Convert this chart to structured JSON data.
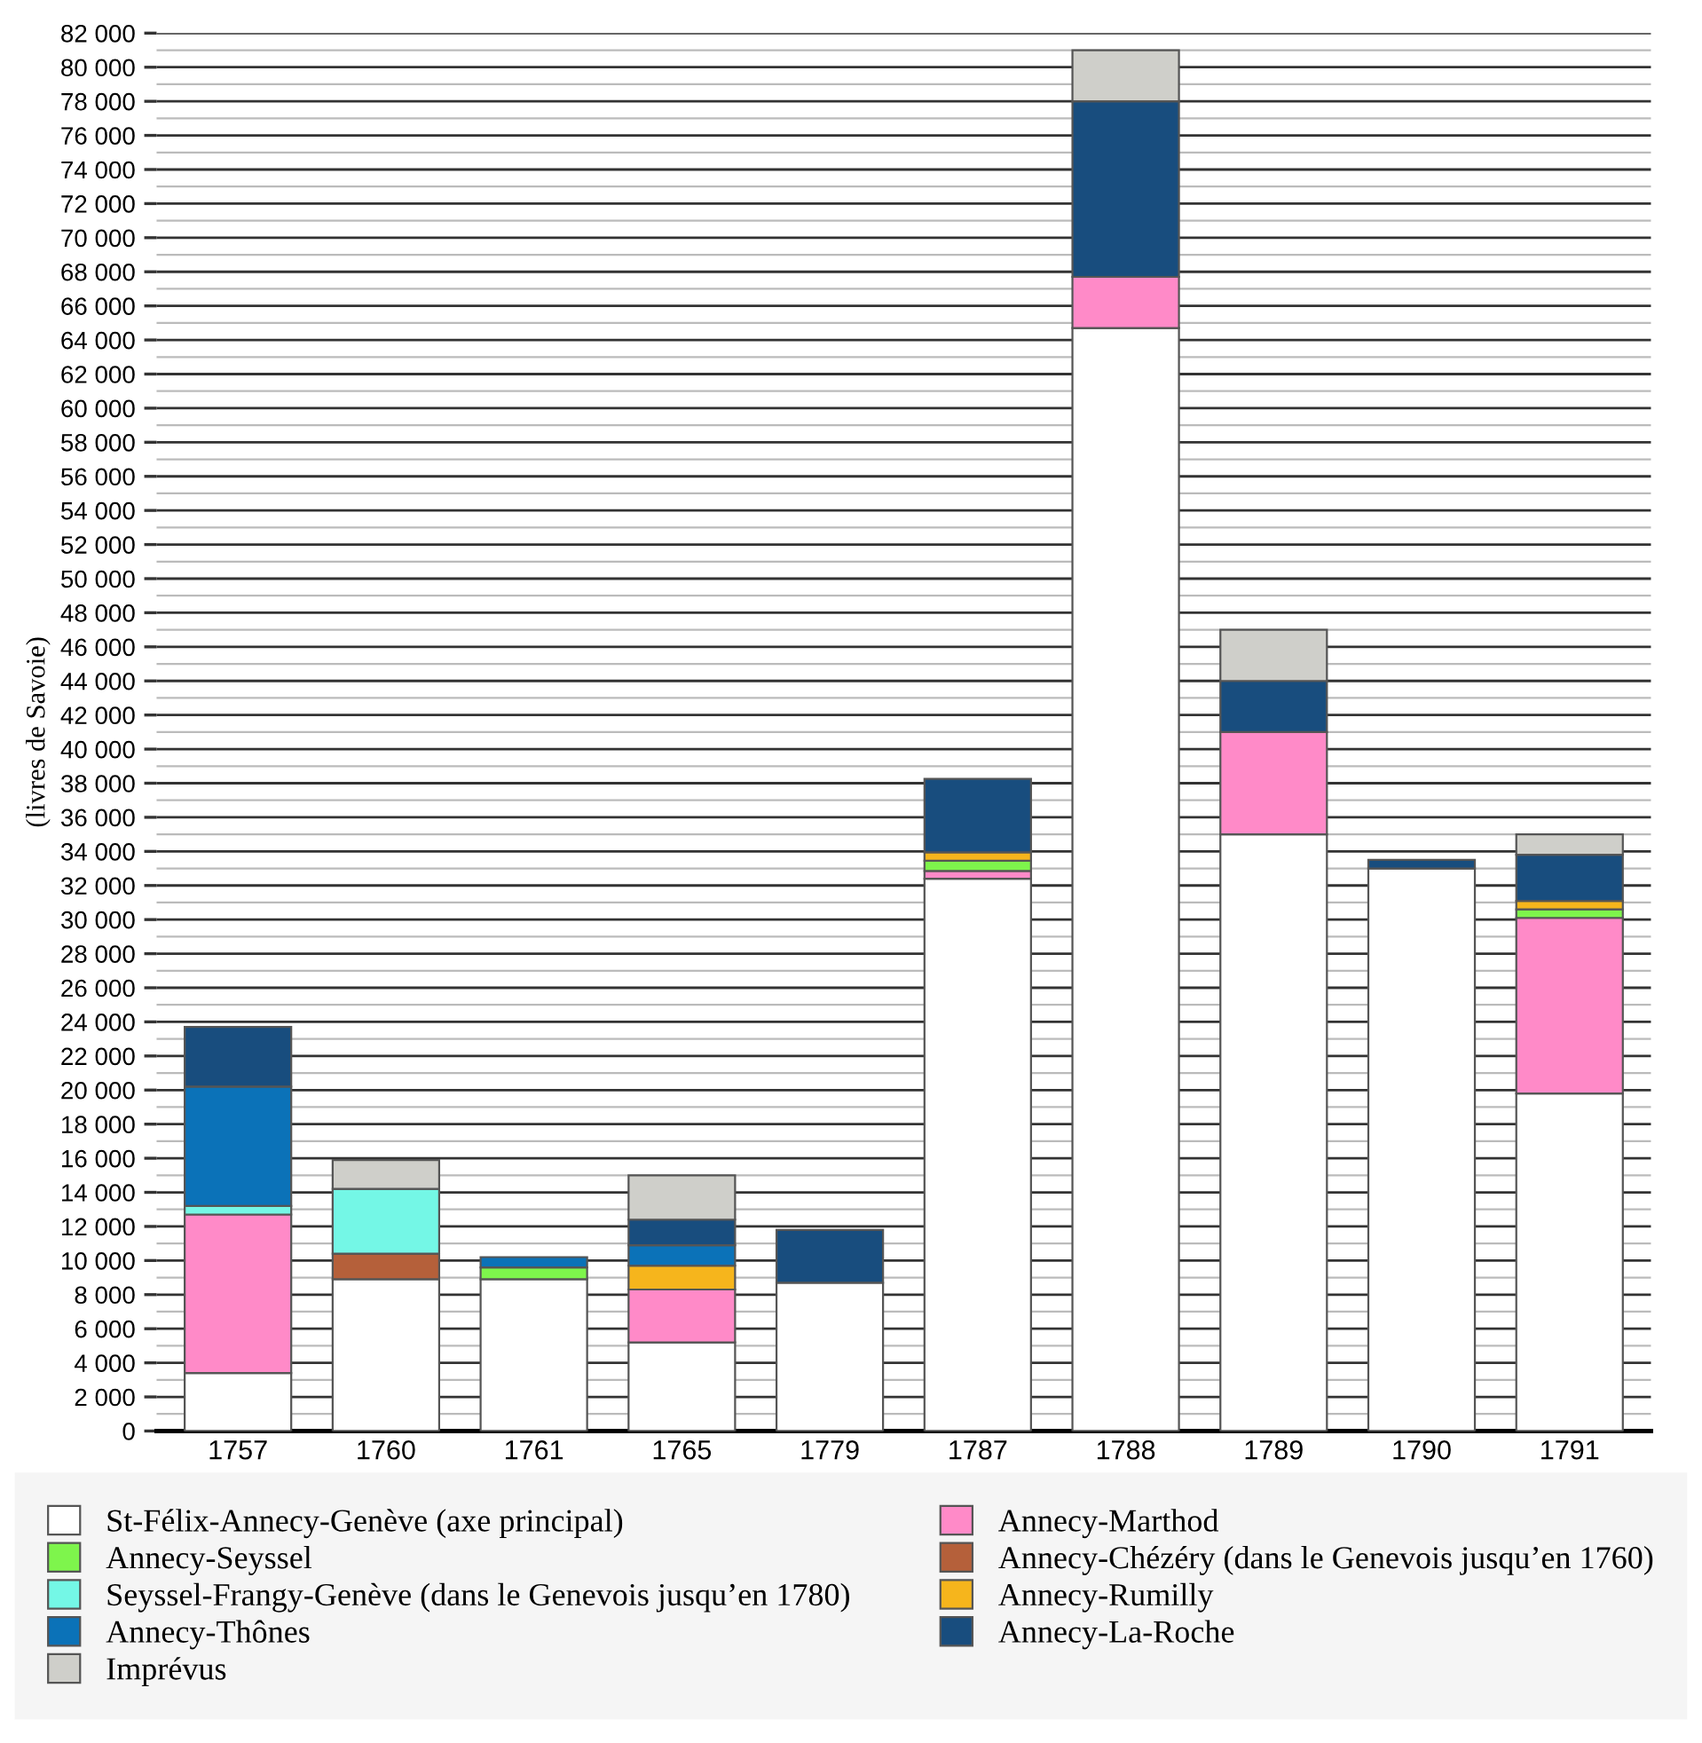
{
  "chart_data": {
    "type": "bar",
    "stacked": true,
    "ylabel": "(livres de Savoie)",
    "legend": "bottom",
    "grid": "y",
    "categories": [
      "1757",
      "1760",
      "1761",
      "1765",
      "1779",
      "1787",
      "1788",
      "1789",
      "1790",
      "1791"
    ],
    "series": [
      {
        "name": "St-Félix-Annecy-Genève (axe principal)",
        "color": "#ffffff",
        "values": [
          3400,
          8900,
          8900,
          5200,
          8700,
          32400,
          64700,
          35000,
          33000,
          19800
        ]
      },
      {
        "name": "Annecy-Marthod",
        "color": "#ff8ac8",
        "values": [
          9300,
          null,
          null,
          3100,
          null,
          450,
          3000,
          6000,
          null,
          10300
        ]
      },
      {
        "name": "Annecy-Chézéry (dans le Genevois jusqu’en 1760)",
        "color": "#b5603a",
        "values": [
          null,
          1500,
          null,
          null,
          null,
          null,
          null,
          null,
          null,
          null
        ]
      },
      {
        "name": "Seyssel-Frangy-Genève (dans le Genevois jusqu’en 1780)",
        "color": "#74f7e6",
        "values": [
          500,
          3800,
          null,
          null,
          null,
          null,
          null,
          null,
          null,
          null
        ]
      },
      {
        "name": "Annecy-Seyssel",
        "color": "#7ef54c",
        "values": [
          null,
          null,
          700,
          null,
          null,
          600,
          null,
          null,
          null,
          500
        ]
      },
      {
        "name": "Annecy-Rumilly",
        "color": "#f6b51c",
        "values": [
          null,
          null,
          null,
          1400,
          null,
          500,
          null,
          null,
          null,
          500
        ]
      },
      {
        "name": "Annecy-Thônes",
        "color": "#0b72b8",
        "values": [
          7000,
          null,
          600,
          1200,
          null,
          null,
          null,
          null,
          null,
          null
        ]
      },
      {
        "name": "Annecy-La-Roche",
        "color": "#184d7e",
        "values": [
          3500,
          null,
          null,
          1500,
          3100,
          4300,
          10300,
          3000,
          500,
          2700
        ]
      },
      {
        "name": "Imprévus",
        "color": "#cfcfca",
        "values": [
          null,
          1700,
          null,
          2600,
          null,
          null,
          3000,
          3000,
          null,
          1200
        ]
      }
    ],
    "ylim": [
      0,
      82000
    ],
    "yticks": [
      {
        "value": 0,
        "label": "0"
      },
      {
        "value": 1000,
        "label": null
      },
      {
        "value": 2000,
        "label": "2 000"
      },
      {
        "value": 3000,
        "label": null
      },
      {
        "value": 4000,
        "label": "4 000"
      },
      {
        "value": 5000,
        "label": null
      },
      {
        "value": 6000,
        "label": "6 000"
      },
      {
        "value": 7000,
        "label": null
      },
      {
        "value": 8000,
        "label": "8 000"
      },
      {
        "value": 9000,
        "label": null
      },
      {
        "value": 10000,
        "label": "10 000"
      },
      {
        "value": 11000,
        "label": null
      },
      {
        "value": 12000,
        "label": "12 000"
      },
      {
        "value": 13000,
        "label": null
      },
      {
        "value": 14000,
        "label": "14 000"
      },
      {
        "value": 15000,
        "label": null
      },
      {
        "value": 16000,
        "label": "16 000"
      },
      {
        "value": 17000,
        "label": null
      },
      {
        "value": 18000,
        "label": "18 000"
      },
      {
        "value": 19000,
        "label": null
      },
      {
        "value": 20000,
        "label": "20 000"
      },
      {
        "value": 21000,
        "label": null
      },
      {
        "value": 22000,
        "label": "22 000"
      },
      {
        "value": 23000,
        "label": null
      },
      {
        "value": 24000,
        "label": "24 000"
      },
      {
        "value": 25000,
        "label": null
      },
      {
        "value": 26000,
        "label": "26 000"
      },
      {
        "value": 27000,
        "label": null
      },
      {
        "value": 28000,
        "label": "28 000"
      },
      {
        "value": 29000,
        "label": null
      },
      {
        "value": 30000,
        "label": "30 000"
      },
      {
        "value": 31000,
        "label": null
      },
      {
        "value": 32000,
        "label": "32 000"
      },
      {
        "value": 33000,
        "label": null
      },
      {
        "value": 34000,
        "label": "34 000"
      },
      {
        "value": 35000,
        "label": null
      },
      {
        "value": 36000,
        "label": "36 000"
      },
      {
        "value": 37000,
        "label": null
      },
      {
        "value": 38000,
        "label": "38 000"
      },
      {
        "value": 39000,
        "label": null
      },
      {
        "value": 40000,
        "label": "40 000"
      },
      {
        "value": 41000,
        "label": null
      },
      {
        "value": 42000,
        "label": "42 000"
      },
      {
        "value": 43000,
        "label": null
      },
      {
        "value": 44000,
        "label": "44 000"
      },
      {
        "value": 45000,
        "label": null
      },
      {
        "value": 46000,
        "label": "46 000"
      },
      {
        "value": 47000,
        "label": null
      },
      {
        "value": 48000,
        "label": "48 000"
      },
      {
        "value": 49000,
        "label": null
      },
      {
        "value": 50000,
        "label": "50 000"
      },
      {
        "value": 51000,
        "label": null
      },
      {
        "value": 52000,
        "label": "52 000"
      },
      {
        "value": 53000,
        "label": null
      },
      {
        "value": 54000,
        "label": "54 000"
      },
      {
        "value": 55000,
        "label": null
      },
      {
        "value": 56000,
        "label": "56 000"
      },
      {
        "value": 57000,
        "label": null
      },
      {
        "value": 58000,
        "label": "58 000"
      },
      {
        "value": 59000,
        "label": null
      },
      {
        "value": 60000,
        "label": "60 000"
      },
      {
        "value": 61000,
        "label": null
      },
      {
        "value": 62000,
        "label": "62 000"
      },
      {
        "value": 63000,
        "label": null
      },
      {
        "value": 64000,
        "label": "64 000"
      },
      {
        "value": 65000,
        "label": null
      },
      {
        "value": 66000,
        "label": "66 000"
      },
      {
        "value": 67000,
        "label": null
      },
      {
        "value": 68000,
        "label": "68 000"
      },
      {
        "value": 69000,
        "label": null
      },
      {
        "value": 70000,
        "label": "70 000"
      },
      {
        "value": 71000,
        "label": null
      },
      {
        "value": 72000,
        "label": "72 000"
      },
      {
        "value": 73000,
        "label": null
      },
      {
        "value": 74000,
        "label": "74 000"
      },
      {
        "value": 75000,
        "label": null
      },
      {
        "value": 76000,
        "label": "76 000"
      },
      {
        "value": 77000,
        "label": null
      },
      {
        "value": 78000,
        "label": "78 000"
      },
      {
        "value": 79000,
        "label": null
      },
      {
        "value": 80000,
        "label": "80 000"
      },
      {
        "value": 81000,
        "label": null
      },
      {
        "value": 82000,
        "label": "82 000"
      }
    ]
  }
}
